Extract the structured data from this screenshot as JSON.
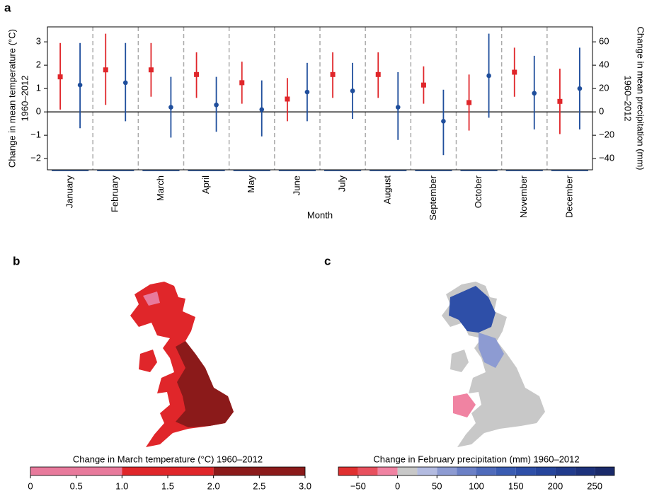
{
  "chart_data": [
    {
      "type": "errorbar",
      "panel_label": "a",
      "xlabel": "Month",
      "ylabel": [
        "Change in mean temperature (°C)",
        "1960–2012"
      ],
      "y2label": [
        "Change in mean precipitation (mm)",
        "1960–2012"
      ],
      "categories": [
        "January",
        "February",
        "March",
        "April",
        "May",
        "June",
        "July",
        "August",
        "September",
        "October",
        "November",
        "December"
      ],
      "ylim": [
        -2.48,
        3.64
      ],
      "yticks": [
        {
          "value": -2,
          "label": "−2"
        },
        {
          "value": -1,
          "label": "−1"
        },
        0,
        1,
        2,
        3
      ],
      "y2lim": [
        -49.6,
        72.8
      ],
      "y2ticks": [
        {
          "value": -40,
          "label": "−40"
        },
        {
          "value": -20,
          "label": "−20"
        },
        0,
        20,
        40,
        60
      ],
      "series": [
        {
          "color": "#e0262a",
          "marker": "square",
          "axis": "y",
          "values": [
            1.5,
            1.8,
            1.8,
            1.6,
            1.25,
            0.55,
            1.6,
            1.6,
            1.15,
            0.4,
            1.7,
            0.45
          ],
          "lower": [
            0.1,
            0.3,
            0.65,
            0.6,
            0.35,
            -0.4,
            0.6,
            0.6,
            0.35,
            -0.8,
            0.65,
            -0.95
          ],
          "upper": [
            2.95,
            3.35,
            2.95,
            2.55,
            2.15,
            1.45,
            2.55,
            2.55,
            1.95,
            1.6,
            2.75,
            1.85
          ]
        },
        {
          "color": "#1f4e9c",
          "marker": "circle",
          "axis": "y2",
          "values": [
            23,
            25,
            4,
            6,
            2,
            17,
            18,
            4,
            -8,
            31,
            16,
            20
          ],
          "lower": [
            -14,
            -8,
            -22,
            -17,
            -21,
            -8,
            -6,
            -24,
            -37,
            -5,
            -15,
            -15
          ],
          "upper": [
            59,
            59,
            30,
            30,
            27,
            42,
            42,
            34,
            19,
            67,
            48,
            55
          ]
        }
      ]
    },
    {
      "type": "colorbar",
      "panel_label": "b",
      "title": "Change in March temperature (°C) 1960–2012",
      "bins": [
        0,
        1,
        2,
        3
      ],
      "colors": [
        "#e87a9c",
        "#e0262a",
        "#8b1a1a"
      ],
      "xlim": [
        0,
        3
      ],
      "xticks": [
        0,
        0.5,
        {
          "value": 1,
          "label": "1.0"
        },
        1.5,
        {
          "value": 2,
          "label": "2.0"
        },
        2.5,
        {
          "value": 3,
          "label": "3.0"
        }
      ]
    },
    {
      "type": "colorbar",
      "panel_label": "c",
      "title": "Change in February precipitation (mm) 1960–2012",
      "bins": [
        -75,
        -50,
        -25,
        0,
        25,
        50,
        75,
        100,
        125,
        150,
        175,
        200,
        225,
        250,
        275
      ],
      "colors": [
        "#e03030",
        "#e8505e",
        "#f083a2",
        "#c8c8c8",
        "#b3bbe0",
        "#8d9bd2",
        "#6b80c6",
        "#4f6bbb",
        "#3a5cb2",
        "#2e4fa8",
        "#26459c",
        "#213b8c",
        "#1d327c",
        "#1a2a6a"
      ],
      "xlim": [
        -75,
        275
      ],
      "xticks": [
        {
          "value": -50,
          "label": "−50"
        },
        0,
        50,
        100,
        150,
        200,
        250
      ]
    }
  ]
}
